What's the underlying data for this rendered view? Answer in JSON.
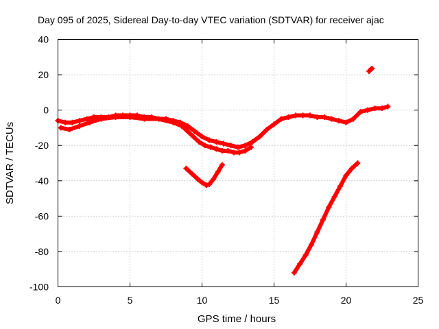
{
  "chart_data": {
    "type": "scatter",
    "title": "Day 095 of 2025, Sidereal Day-to-day VTEC variation (SDTVAR) for receiver ajac",
    "xlabel": "GPS time / hours",
    "ylabel": "SDTVAR / TECUs",
    "xlim": [
      0,
      25
    ],
    "ylim": [
      -100,
      40
    ],
    "xticks": [
      0,
      5,
      10,
      15,
      20,
      25
    ],
    "yticks": [
      -100,
      -80,
      -60,
      -40,
      -20,
      0,
      20,
      40
    ],
    "grid": true,
    "legend": "none",
    "marker_color": "#ff0000",
    "series": [
      {
        "x": [
          0.0,
          0.5,
          1.0,
          1.5,
          2.0,
          2.5,
          3.0,
          3.5,
          4.0,
          4.5,
          5.0,
          5.5,
          6.0,
          6.5,
          7.0,
          7.5,
          8.0,
          8.5,
          9.0,
          9.5,
          10.0,
          10.5,
          11.0,
          11.5,
          12.0,
          12.5,
          13.0,
          13.5,
          14.0,
          14.5,
          15.0,
          15.5,
          16.0,
          16.5,
          17.0,
          17.5,
          18.0,
          18.5,
          19.0,
          19.5,
          20.0,
          20.5,
          21.0,
          21.5,
          22.0,
          22.5,
          22.9
        ],
        "y": [
          -6,
          -7,
          -7,
          -6,
          -5,
          -4,
          -4,
          -4,
          -3,
          -3,
          -3,
          -3,
          -4,
          -4,
          -5,
          -5,
          -6,
          -7,
          -9,
          -12,
          -15,
          -17,
          -18,
          -19,
          -20,
          -21,
          -20,
          -18,
          -15,
          -11,
          -8,
          -5,
          -4,
          -3,
          -3,
          -3,
          -4,
          -4,
          -5,
          -6,
          -7,
          -5,
          -1,
          0,
          1,
          1,
          2
        ]
      },
      {
        "x": [
          0.2,
          0.8,
          1.5,
          2.2,
          3.0,
          4.0,
          5.0,
          6.0,
          7.0,
          8.0,
          8.6,
          9.0,
          9.4,
          9.8,
          10.2,
          10.6,
          11.0,
          11.4,
          11.8,
          12.2,
          12.6,
          13.0,
          13.4
        ],
        "y": [
          -10,
          -11,
          -9,
          -7,
          -5,
          -4,
          -4,
          -5,
          -5,
          -7,
          -9,
          -12,
          -15,
          -18,
          -20,
          -21,
          -22,
          -23,
          -23,
          -24,
          -24,
          -23,
          -21
        ]
      },
      {
        "x": [
          8.9,
          9.3,
          9.7,
          10.0,
          10.3,
          10.5,
          10.8,
          11.1,
          11.4
        ],
        "y": [
          -33,
          -36,
          -39,
          -41,
          -42.5,
          -42,
          -39,
          -35,
          -31
        ]
      },
      {
        "x": [
          16.4,
          16.8,
          17.2,
          17.6,
          18.0,
          18.4,
          18.8,
          19.2,
          19.6,
          20.0,
          20.4,
          20.8
        ],
        "y": [
          -92,
          -87,
          -82,
          -76,
          -69,
          -62,
          -55,
          -49,
          -43,
          -37,
          -33,
          -30
        ]
      },
      {
        "x": [
          21.6,
          21.7,
          21.8
        ],
        "y": [
          22,
          23,
          23.5
        ]
      }
    ]
  }
}
